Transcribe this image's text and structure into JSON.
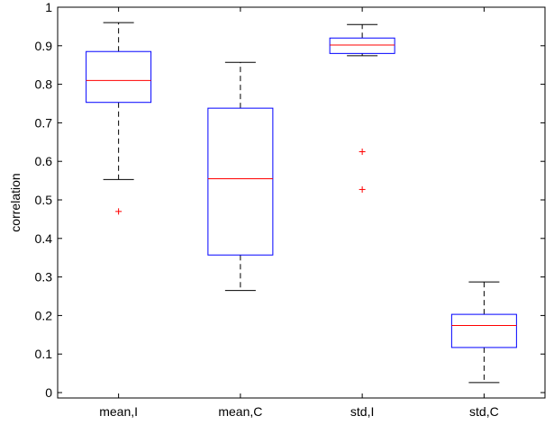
{
  "chart_data": {
    "type": "boxplot",
    "title": "",
    "xlabel": "",
    "ylabel": "correlation",
    "ylim": [
      0,
      1
    ],
    "yticks": [
      0,
      0.1,
      0.2,
      0.3,
      0.4,
      0.5,
      0.6,
      0.7,
      0.8,
      0.9,
      1
    ],
    "ytick_labels": [
      "0",
      "0.1",
      "0.2",
      "0.3",
      "0.4",
      "0.5",
      "0.6",
      "0.7",
      "0.8",
      "0.9",
      "1"
    ],
    "categories": [
      "mean,I",
      "mean,C",
      "std,I",
      "std,C"
    ],
    "boxes": [
      {
        "label": "mean,I",
        "whisker_low": 0.553,
        "q1": 0.753,
        "median": 0.81,
        "q3": 0.885,
        "whisker_high": 0.96,
        "outliers": [
          0.47
        ]
      },
      {
        "label": "mean,C",
        "whisker_low": 0.265,
        "q1": 0.357,
        "median": 0.555,
        "q3": 0.738,
        "whisker_high": 0.857,
        "outliers": []
      },
      {
        "label": "std,I",
        "whisker_low": 0.874,
        "q1": 0.88,
        "median": 0.902,
        "q3": 0.92,
        "whisker_high": 0.955,
        "outliers": [
          0.625,
          0.527
        ]
      },
      {
        "label": "std,C",
        "whisker_low": 0.026,
        "q1": 0.117,
        "median": 0.174,
        "q3": 0.203,
        "whisker_high": 0.287,
        "outliers": []
      }
    ],
    "grid": false,
    "colors": {
      "box": "#0000ff",
      "median": "#ff0000",
      "whisker": "#000000",
      "outlier": "#ff0000",
      "axis": "#000000"
    }
  }
}
